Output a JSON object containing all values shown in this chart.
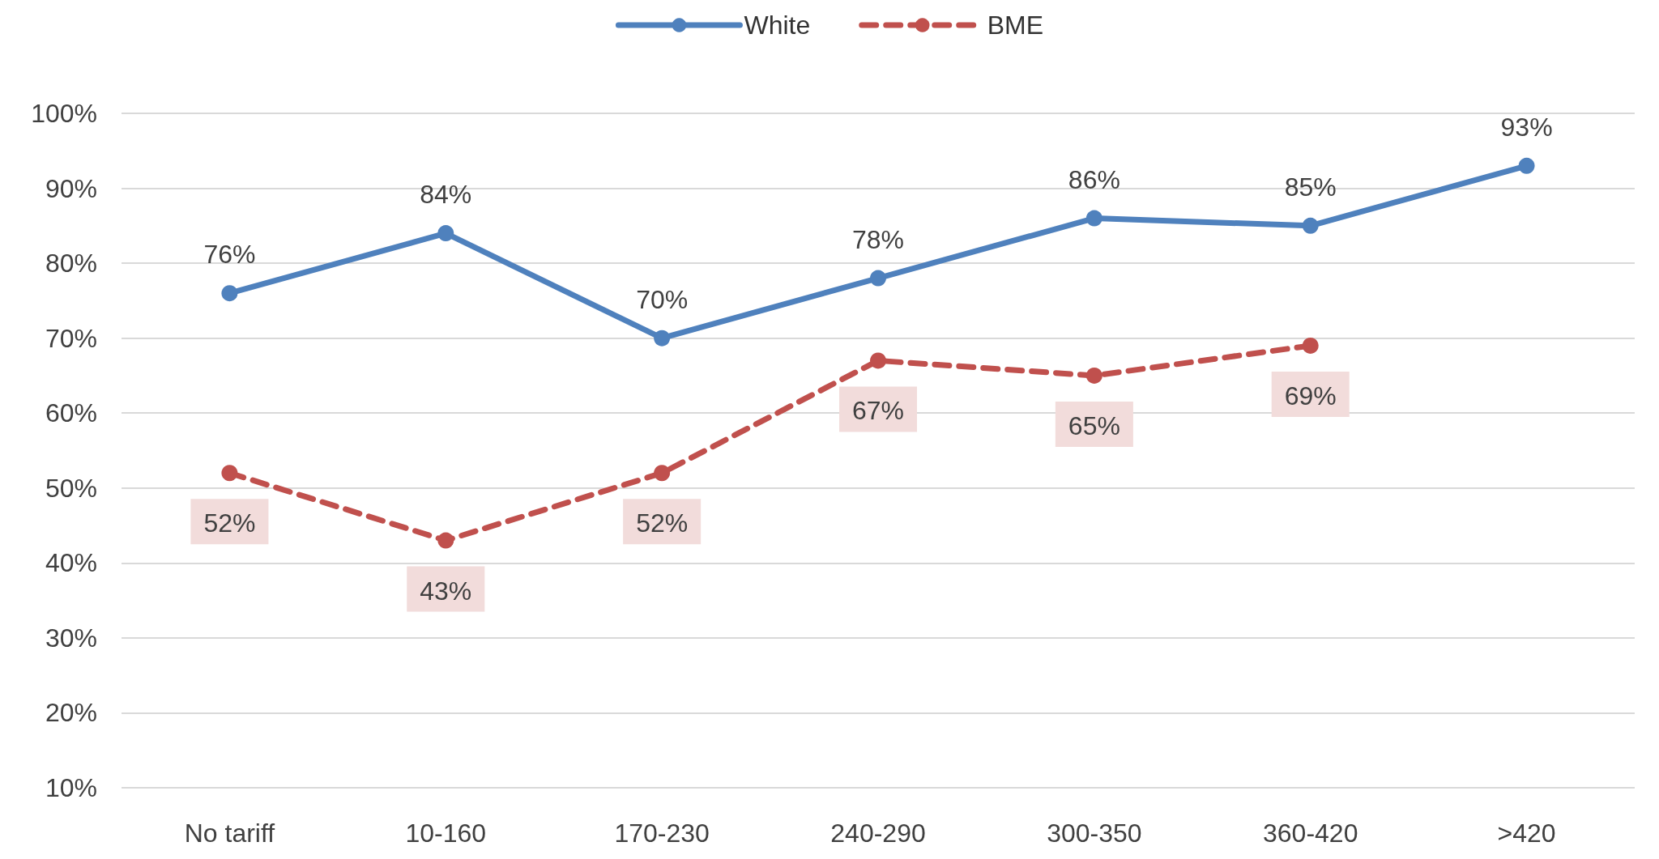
{
  "chart_data": {
    "type": "line",
    "categories": [
      "No tariff",
      "10-160",
      "170-230",
      "240-290",
      "300-350",
      "360-420",
      ">420"
    ],
    "series": [
      {
        "name": "White",
        "color": "#4f81bd",
        "line_style": "solid",
        "values": [
          76,
          84,
          70,
          78,
          86,
          85,
          93
        ],
        "value_labels": [
          "76%",
          "84%",
          "70%",
          "78%",
          "86%",
          "85%",
          "93%"
        ]
      },
      {
        "name": "BME",
        "color": "#c0504d",
        "line_style": "dashed",
        "values": [
          52,
          43,
          52,
          67,
          65,
          69,
          null
        ],
        "value_labels": [
          "52%",
          "43%",
          "52%",
          "67%",
          "65%",
          "69%",
          null
        ]
      }
    ],
    "ylim": [
      10,
      100
    ],
    "yticks": [
      {
        "value": 10,
        "label": "10%"
      },
      {
        "value": 20,
        "label": "20%"
      },
      {
        "value": 30,
        "label": "30%"
      },
      {
        "value": 40,
        "label": "40%"
      },
      {
        "value": 50,
        "label": "50%"
      },
      {
        "value": 60,
        "label": "60%"
      },
      {
        "value": 70,
        "label": "70%"
      },
      {
        "value": 80,
        "label": "80%"
      },
      {
        "value": 90,
        "label": "90%"
      },
      {
        "value": 100,
        "label": "100%"
      }
    ],
    "grid": "y",
    "legend": "top",
    "marker": "circle"
  }
}
